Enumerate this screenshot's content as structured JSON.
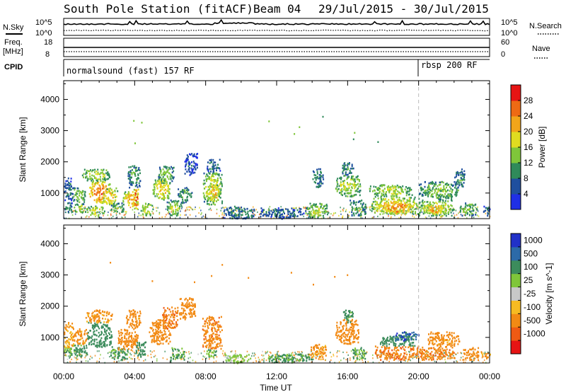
{
  "header": {
    "station": "South Pole Station (fitACF)",
    "beam": "Beam 04",
    "dates": "29/Jul/2015 - 30/Jul/2015"
  },
  "strips": {
    "nsky_label": "N.Sky",
    "nsky_ticks": [
      "10^5",
      "10^0"
    ],
    "nsearch_label": "N.Search",
    "nsearch_ticks": [
      "10^5",
      "10^0"
    ],
    "freq_label": "Freq.",
    "freq_unit": "[MHz]",
    "freq_ticks": [
      "18",
      "8"
    ],
    "nave_label": "Nave",
    "nave_ticks": [
      "60",
      "0"
    ],
    "cpid_label": "CPID",
    "cpid_segments": [
      {
        "text": "normalsound (fast) 157 RF",
        "start_hour": 0,
        "end_hour": 20
      },
      {
        "text": "rbsp 200 RF",
        "start_hour": 20,
        "end_hour": 24
      }
    ]
  },
  "colors": {
    "power_scale": [
      "#1f2fe6",
      "#1f4f9e",
      "#2f8a5a",
      "#7fc63a",
      "#e0dc20",
      "#f2a51a",
      "#ee6a14",
      "#e61414"
    ],
    "velocity_scale": [
      "#e61414",
      "#ef5a14",
      "#f28a14",
      "#f6bb22",
      "#c8c8c8",
      "#7fc63a",
      "#3c8c5c",
      "#2c6aa8",
      "#2131c8"
    ],
    "no_data": "#ffffff"
  },
  "chart_data": [
    {
      "type": "heatmap",
      "name": "power",
      "ylabel": "Slant Range [km]",
      "xlabel": "Time UT",
      "xlim_hours": [
        0,
        24
      ],
      "ylim": [
        180,
        4600
      ],
      "x_ticks": [
        "00:00",
        "04:00",
        "08:00",
        "12:00",
        "16:00",
        "20:00",
        "00:00"
      ],
      "y_ticks": [
        1000,
        2000,
        3000,
        4000
      ],
      "colorbar_label": "Power [dB]",
      "colorbar_ticks": [
        4,
        8,
        12,
        16,
        20,
        24,
        28
      ],
      "colorbar_range": [
        0,
        32
      ],
      "mode_change_hour": 20,
      "patches": [
        {
          "t": [
            0.0,
            0.45
          ],
          "r": [
            400,
            700
          ],
          "level": 12
        },
        {
          "t": [
            0.0,
            0.45
          ],
          "r": [
            700,
            1500
          ],
          "level": 8
        },
        {
          "t": [
            0.45,
            1.2
          ],
          "r": [
            400,
            700
          ],
          "level": 16
        },
        {
          "t": [
            0.45,
            1.2
          ],
          "r": [
            700,
            1200
          ],
          "level": 14
        },
        {
          "t": [
            1.2,
            2.3
          ],
          "r": [
            300,
            600
          ],
          "level": 18
        },
        {
          "t": [
            1.4,
            2.6
          ],
          "r": [
            700,
            1400
          ],
          "level": 26
        },
        {
          "t": [
            1.0,
            2.6
          ],
          "r": [
            1400,
            1800
          ],
          "level": 16
        },
        {
          "t": [
            2.2,
            3.0
          ],
          "r": [
            600,
            1200
          ],
          "level": 20
        },
        {
          "t": [
            2.6,
            3.4
          ],
          "r": [
            400,
            700
          ],
          "level": 14
        },
        {
          "t": [
            3.3,
            4.2
          ],
          "r": [
            600,
            1100
          ],
          "level": 22
        },
        {
          "t": [
            3.6,
            4.3
          ],
          "r": [
            1200,
            1900
          ],
          "level": 12
        },
        {
          "t": [
            3.9,
            4.2
          ],
          "r": [
            500,
            1200
          ],
          "level": 28
        },
        {
          "t": [
            4.3,
            5.0
          ],
          "r": [
            300,
            700
          ],
          "level": 18
        },
        {
          "t": [
            5.0,
            6.0
          ],
          "r": [
            800,
            1500
          ],
          "level": 20
        },
        {
          "t": [
            5.3,
            6.2
          ],
          "r": [
            1300,
            1900
          ],
          "level": 14
        },
        {
          "t": [
            5.8,
            6.6
          ],
          "r": [
            300,
            800
          ],
          "level": 16
        },
        {
          "t": [
            6.4,
            7.2
          ],
          "r": [
            700,
            1200
          ],
          "level": 12
        },
        {
          "t": [
            6.8,
            7.5
          ],
          "r": [
            1600,
            2300
          ],
          "level": 6
        },
        {
          "t": [
            7.8,
            8.9
          ],
          "r": [
            650,
            1700
          ],
          "level": 18
        },
        {
          "t": [
            8.2,
            8.7
          ],
          "r": [
            800,
            1300
          ],
          "level": 24
        },
        {
          "t": [
            8.0,
            8.8
          ],
          "r": [
            1700,
            2100
          ],
          "level": 8
        },
        {
          "t": [
            9.0,
            10.8
          ],
          "r": [
            200,
            600
          ],
          "level": 10
        },
        {
          "t": [
            11.0,
            13.5
          ],
          "r": [
            200,
            550
          ],
          "level": 8
        },
        {
          "t": [
            13.6,
            14.9
          ],
          "r": [
            200,
            700
          ],
          "level": 16
        },
        {
          "t": [
            14.0,
            14.6
          ],
          "r": [
            1200,
            1800
          ],
          "level": 10
        },
        {
          "t": [
            15.3,
            16.7
          ],
          "r": [
            900,
            1600
          ],
          "level": 16
        },
        {
          "t": [
            15.6,
            16.3
          ],
          "r": [
            1600,
            2000
          ],
          "level": 10
        },
        {
          "t": [
            16.1,
            17.0
          ],
          "r": [
            300,
            800
          ],
          "level": 12
        },
        {
          "t": [
            17.3,
            20.0
          ],
          "r": [
            350,
            900
          ],
          "level": 20
        },
        {
          "t": [
            18.0,
            19.6
          ],
          "r": [
            350,
            750
          ],
          "level": 26
        },
        {
          "t": [
            17.2,
            19.6
          ],
          "r": [
            900,
            1300
          ],
          "level": 16
        },
        {
          "t": [
            20.0,
            22.0
          ],
          "r": [
            300,
            800
          ],
          "level": 18
        },
        {
          "t": [
            20.0,
            22.2
          ],
          "r": [
            800,
            1400
          ],
          "level": 14
        },
        {
          "t": [
            20.4,
            21.4
          ],
          "r": [
            350,
            650
          ],
          "level": 24
        },
        {
          "t": [
            22.3,
            23.3
          ],
          "r": [
            300,
            700
          ],
          "level": 14
        },
        {
          "t": [
            22.0,
            22.6
          ],
          "r": [
            1200,
            1800
          ],
          "level": 10
        },
        {
          "t": [
            23.6,
            24.0
          ],
          "r": [
            300,
            600
          ],
          "level": 10
        }
      ]
    },
    {
      "type": "heatmap",
      "name": "velocity",
      "ylabel": "Slant Range [km]",
      "xlabel": "Time UT",
      "xlim_hours": [
        0,
        24
      ],
      "ylim": [
        180,
        4600
      ],
      "x_ticks": [
        "00:00",
        "04:00",
        "08:00",
        "12:00",
        "16:00",
        "20:00",
        "00:00"
      ],
      "y_ticks": [
        1000,
        2000,
        3000,
        4000
      ],
      "colorbar_label": "Velocity [m s^-1]",
      "colorbar_ticks": [
        "1000",
        "500",
        "100",
        "25",
        "-25",
        "-100",
        "-500",
        "-1000"
      ],
      "mode_change_hour": 20,
      "patches": [
        {
          "t": [
            0.0,
            0.5
          ],
          "r": [
            400,
            700
          ],
          "vel": 100
        },
        {
          "t": [
            0.0,
            0.5
          ],
          "r": [
            700,
            1500
          ],
          "vel": -100
        },
        {
          "t": [
            0.5,
            1.3
          ],
          "r": [
            400,
            800
          ],
          "vel": 200
        },
        {
          "t": [
            0.5,
            1.3
          ],
          "r": [
            800,
            1300
          ],
          "vel": -200
        },
        {
          "t": [
            1.3,
            2.7
          ],
          "r": [
            700,
            1500
          ],
          "vel": 300
        },
        {
          "t": [
            1.2,
            2.7
          ],
          "r": [
            1500,
            1900
          ],
          "vel": -150
        },
        {
          "t": [
            2.6,
            3.6
          ],
          "r": [
            300,
            700
          ],
          "vel": 150
        },
        {
          "t": [
            3.0,
            4.2
          ],
          "r": [
            600,
            1300
          ],
          "vel": -300
        },
        {
          "t": [
            3.5,
            4.3
          ],
          "r": [
            1300,
            1900
          ],
          "vel": -200
        },
        {
          "t": [
            4.0,
            4.6
          ],
          "r": [
            400,
            900
          ],
          "vel": 250
        },
        {
          "t": [
            4.8,
            6.0
          ],
          "r": [
            800,
            1600
          ],
          "vel": -250
        },
        {
          "t": [
            5.5,
            6.4
          ],
          "r": [
            1300,
            2000
          ],
          "vel": -400
        },
        {
          "t": [
            6.0,
            6.8
          ],
          "r": [
            300,
            700
          ],
          "vel": 120
        },
        {
          "t": [
            6.5,
            7.4
          ],
          "r": [
            1600,
            2300
          ],
          "vel": -300
        },
        {
          "t": [
            7.8,
            8.9
          ],
          "r": [
            650,
            1700
          ],
          "vel": -350
        },
        {
          "t": [
            8.0,
            8.6
          ],
          "r": [
            400,
            650
          ],
          "vel": 100
        },
        {
          "t": [
            9.0,
            10.5
          ],
          "r": [
            200,
            500
          ],
          "vel": 50
        },
        {
          "t": [
            11.5,
            14.0
          ],
          "r": [
            200,
            500
          ],
          "vel": 150
        },
        {
          "t": [
            13.8,
            14.8
          ],
          "r": [
            300,
            800
          ],
          "vel": -150
        },
        {
          "t": [
            15.3,
            16.6
          ],
          "r": [
            800,
            1600
          ],
          "vel": -300
        },
        {
          "t": [
            15.7,
            16.3
          ],
          "r": [
            1500,
            1900
          ],
          "vel": 150
        },
        {
          "t": [
            16.2,
            17.0
          ],
          "r": [
            300,
            700
          ],
          "vel": 100
        },
        {
          "t": [
            17.5,
            20.2
          ],
          "r": [
            300,
            750
          ],
          "vel": -400
        },
        {
          "t": [
            17.8,
            19.8
          ],
          "r": [
            750,
            1100
          ],
          "vel": 300
        },
        {
          "t": [
            18.5,
            20.0
          ],
          "r": [
            900,
            1200
          ],
          "vel": 800
        },
        {
          "t": [
            20.0,
            22.0
          ],
          "r": [
            300,
            700
          ],
          "vel": -350
        },
        {
          "t": [
            20.5,
            22.3
          ],
          "r": [
            700,
            1200
          ],
          "vel": -200
        },
        {
          "t": [
            22.5,
            23.4
          ],
          "r": [
            300,
            700
          ],
          "vel": -300
        },
        {
          "t": [
            23.5,
            24.0
          ],
          "r": [
            350,
            600
          ],
          "vel": -200
        }
      ]
    }
  ]
}
